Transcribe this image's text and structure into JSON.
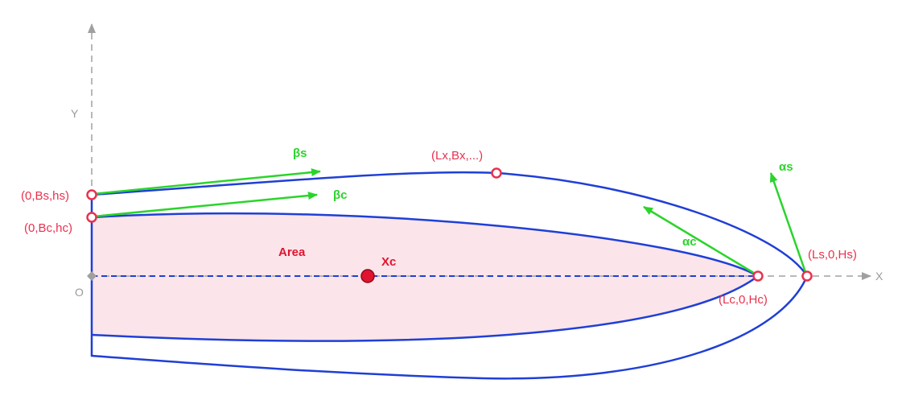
{
  "axes": {
    "x_label": "X",
    "y_label": "Y",
    "origin_label": "O"
  },
  "points": {
    "bs_hs": "(0,Bs,hs)",
    "bc_hc": "(0,Bc,hc)",
    "lx_bx": "(Lx,Bx,...)",
    "lc_hc": "(Lc,0,Hc)",
    "ls_hs": "(Ls,0,Hs)"
  },
  "vectors": {
    "beta_s": "βs",
    "beta_c": "βc",
    "alpha_c": "αc",
    "alpha_s": "αs"
  },
  "region": {
    "area_label": "Area",
    "centroid_label": "Xc"
  },
  "colors": {
    "outline": "#1f3fd6",
    "fill": "#fbe4ea",
    "point": "#e8314f",
    "vector": "#2bd42b",
    "axis": "#a0a0a0"
  }
}
